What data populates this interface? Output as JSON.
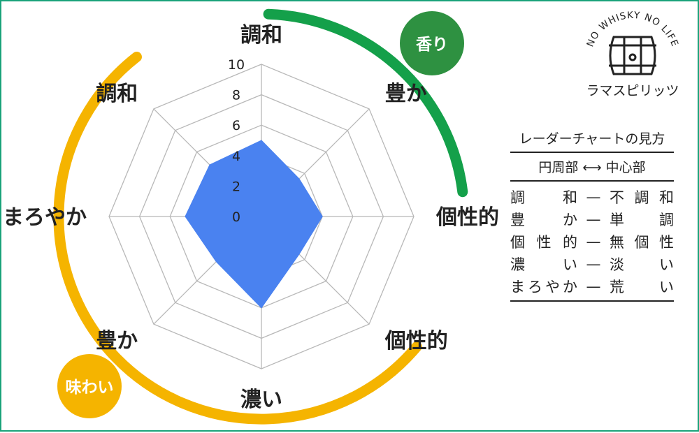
{
  "chart_data": {
    "type": "radar",
    "axes": [
      "調和",
      "豊か",
      "個性的",
      "個性的",
      "濃い",
      "豊か",
      "まろやか",
      "調和"
    ],
    "values": [
      5,
      3.5,
      4,
      3.5,
      6,
      4.2,
      5,
      4.8
    ],
    "ticks": [
      "0",
      "2",
      "4",
      "6",
      "8",
      "10"
    ],
    "rmax": 10,
    "grid_steps": 5,
    "colors": {
      "fill": "#4a82f0",
      "grid": "#b8b8b8",
      "aroma": "#14a04a",
      "taste": "#f5b400",
      "frame": "#1aa37a"
    },
    "groups": [
      {
        "label": "香り",
        "color": "#14a04a"
      },
      {
        "label": "味わい",
        "color": "#f5b400"
      }
    ]
  },
  "brand": {
    "arc_text": "NO WHISKY NO LIFE",
    "name": "ラマスピリッツ",
    "icon": "whisky-barrel-icon"
  },
  "legend": {
    "title": "レーダーチャートの見方",
    "scale": "円周部 ⟷ 中心部",
    "rows": [
      {
        "left": "調和",
        "dash": "—",
        "right": "不調和"
      },
      {
        "left": "豊か",
        "dash": "—",
        "right": "単調"
      },
      {
        "left": "個性的",
        "dash": "—",
        "right": "無個性"
      },
      {
        "left": "濃い",
        "dash": "—",
        "right": "淡い"
      },
      {
        "left": "まろやか",
        "dash": "—",
        "right": "荒い"
      }
    ]
  }
}
